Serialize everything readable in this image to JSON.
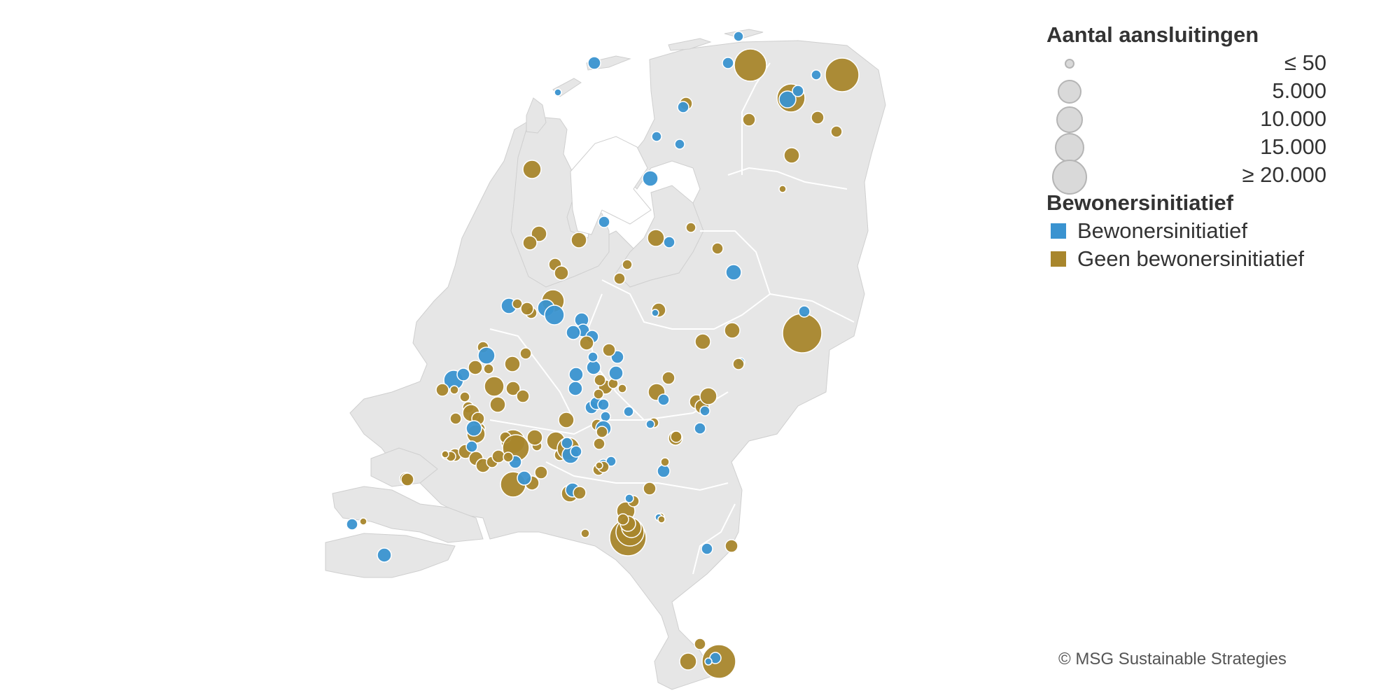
{
  "legend": {
    "size_title": "Aantal aansluitingen",
    "size_items": [
      {
        "label": "≤ 50",
        "value": 50
      },
      {
        "label": "5.000",
        "value": 5000
      },
      {
        "label": "10.000",
        "value": 10000
      },
      {
        "label": "15.000",
        "value": 15000
      },
      {
        "label": "≥ 20.000",
        "value": 20000
      }
    ],
    "category_title": "Bewonersinitiatief",
    "categories": [
      {
        "label": "Bewonersinitiatief",
        "color": "#3a93d0"
      },
      {
        "label": "Geen bewonersinitiatief",
        "color": "#a8862c"
      }
    ]
  },
  "credit": "© MSG Sustainable Strategies",
  "colors": {
    "land": "#e6e6e6",
    "border": "#ffffff",
    "water": "#ffffff",
    "bubble_blue": "#3a93d0",
    "bubble_gold": "#a8862c"
  }
}
